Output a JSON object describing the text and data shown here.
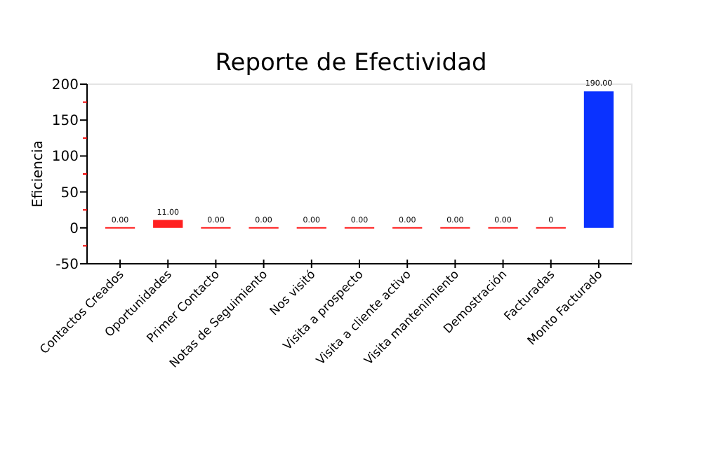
{
  "chart_data": {
    "type": "bar",
    "title": "Reporte de Efectividad",
    "ylabel": "Eficiencia",
    "categories": [
      "Contactos Creados",
      "Oportunidades",
      "Primer Contacto",
      "Notas de Seguimiento",
      "Nos visitó",
      "Visita a prospecto",
      "Visita a cliente activo",
      "Visita mantenimiento",
      "Demostración",
      "Facturadas",
      "Monto Facturado"
    ],
    "values": [
      0,
      11,
      0,
      0,
      0,
      0,
      0,
      0,
      0,
      0,
      190
    ],
    "colors": [
      "#ff2020",
      "#ff2020",
      "#ff2020",
      "#ff2020",
      "#ff2020",
      "#ff2020",
      "#ff2020",
      "#ff2020",
      "#ff2020",
      "#ff2020",
      "#0a32ff"
    ],
    "value_labels": [
      "0.00",
      "11.00",
      "0.00",
      "0.00",
      "0.00",
      "0.00",
      "0.00",
      "0.00",
      "0.00",
      "0",
      "190.00"
    ],
    "ylim": [
      -50,
      200
    ],
    "yticks": [
      -50,
      {
        "value": -25,
        "label": null
      },
      0,
      {
        "value": 25,
        "label": null
      },
      50,
      {
        "value": 75,
        "label": null
      },
      100,
      {
        "value": 125,
        "label": null
      },
      150,
      {
        "value": 175,
        "label": null
      },
      200
    ],
    "grid": false
  }
}
